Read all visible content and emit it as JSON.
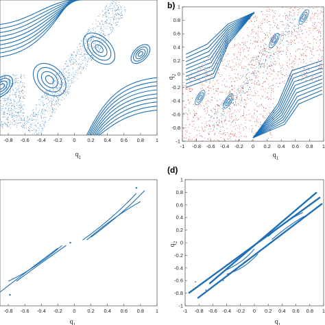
{
  "chart_data": [
    {
      "panel": "a",
      "type": "scatter",
      "xlabel": "q1",
      "ylabel": "",
      "xlim": [
        -1,
        1
      ],
      "ylim": [
        -1,
        1
      ],
      "xticks": [
        "-0.8",
        "-0.6",
        "-0.4",
        "-0.2",
        "0",
        "0.2",
        "0.4",
        "0.6",
        "0.8",
        "1"
      ],
      "yticks": [],
      "series_color": "#1f6fb5",
      "description_marks": {
        "islands": [
          [
            -0.9,
            -0.3
          ],
          [
            -0.3,
            -0.15
          ],
          [
            0.3,
            0.3
          ],
          [
            0.8,
            0.2
          ]
        ]
      }
    },
    {
      "panel": "b",
      "type": "scatter",
      "letter": "b)",
      "xlabel": "q1",
      "ylabel": "q2",
      "xlim": [
        -1,
        1
      ],
      "ylim": [
        -1,
        1
      ],
      "xticks": [
        "-1",
        "-0.8",
        "-0.6",
        "-0.4",
        "-0.2",
        "0",
        "0.2",
        "0.4",
        "0.6",
        "0.8",
        "1"
      ],
      "yticks": [
        "1",
        "0.8",
        "0.6",
        "0.4",
        "0.2",
        "0",
        "-0.2",
        "-0.4",
        "-0.6",
        "-0.8",
        "-1"
      ],
      "series": [
        {
          "color": "#1f6fb5"
        },
        {
          "color": "#c0392b"
        }
      ]
    },
    {
      "panel": "c",
      "type": "line",
      "xlabel": "q1",
      "ylabel": "",
      "xlim": [
        -1,
        1
      ],
      "xticks": [
        "-0.8",
        "-0.6",
        "-0.4",
        "-0.2",
        "0",
        "0.2",
        "0.4",
        "0.6",
        "0.8",
        "1"
      ],
      "series_color": "#1f6fb5"
    },
    {
      "panel": "d",
      "type": "line",
      "letter": "(d)",
      "xlabel": "q1",
      "ylabel": "q2",
      "xlim": [
        -1,
        1
      ],
      "ylim": [
        -1,
        1
      ],
      "xticks": [
        "-1",
        "-0.8",
        "-0.6",
        "-0.4",
        "-0.2",
        "0",
        "0.2",
        "0.4",
        "0.6",
        "0.8",
        "1"
      ],
      "yticks": [
        "1",
        "0.8",
        "0.6",
        "0.4",
        "0.2",
        "0",
        "-0.2",
        "-0.4",
        "-0.6",
        "-0.8",
        "-1"
      ],
      "series_color": "#1f6fb5"
    }
  ]
}
